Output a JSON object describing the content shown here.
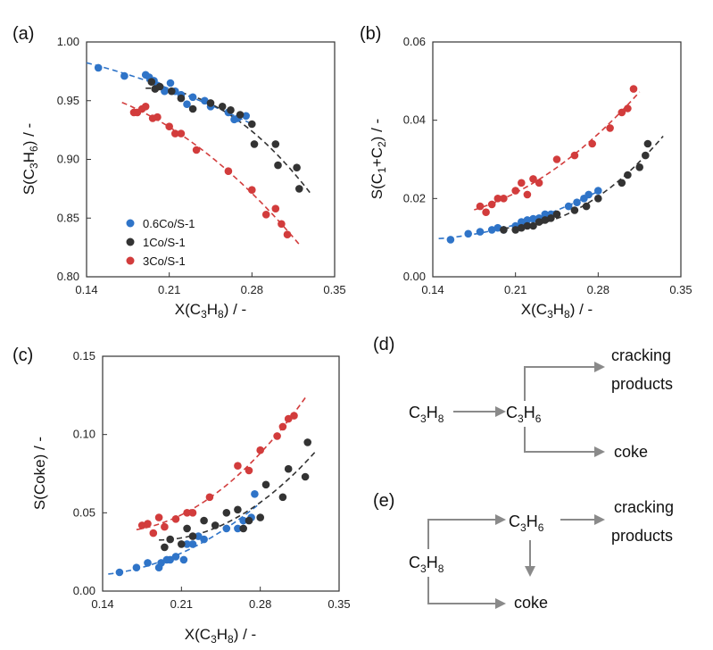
{
  "colors": {
    "blue": "#2f74c8",
    "black": "#333333",
    "red": "#d23c3c",
    "arrow": "#8a8a8a"
  },
  "chart_data": [
    {
      "panel": "(a)",
      "type": "scatter",
      "xlabel": "X(C3H8) / -",
      "ylabel": "S(C3H6) / -",
      "xlim": [
        0.14,
        0.35
      ],
      "ylim": [
        0.8,
        1.0
      ],
      "xticks": [
        "0.14",
        "0.21",
        "0.28",
        "0.35"
      ],
      "yticks": [
        "0.80",
        "0.85",
        "0.90",
        "0.95",
        "1.00"
      ],
      "legend": {
        "location": "bottom-left",
        "entries": [
          "0.6Co/S-1",
          "1Co/S-1",
          "3Co/S-1"
        ]
      },
      "series": [
        {
          "name": "0.6Co/S-1",
          "color": "blue",
          "x": [
            0.15,
            0.172,
            0.19,
            0.193,
            0.197,
            0.2,
            0.206,
            0.211,
            0.215,
            0.22,
            0.225,
            0.23,
            0.24,
            0.245,
            0.26,
            0.265,
            0.268,
            0.275
          ],
          "y": [
            0.978,
            0.971,
            0.972,
            0.97,
            0.967,
            0.963,
            0.958,
            0.965,
            0.958,
            0.955,
            0.947,
            0.953,
            0.95,
            0.945,
            0.94,
            0.934,
            0.935,
            0.937
          ],
          "fit": [
            [
              0.14,
              0.981
            ],
            [
              0.28,
              0.926
            ]
          ]
        },
        {
          "name": "1Co/S-1",
          "color": "black",
          "x": [
            0.195,
            0.198,
            0.202,
            0.212,
            0.22,
            0.23,
            0.245,
            0.255,
            0.262,
            0.27,
            0.28,
            0.282,
            0.3,
            0.302,
            0.318,
            0.32
          ],
          "y": [
            0.966,
            0.96,
            0.962,
            0.958,
            0.952,
            0.943,
            0.948,
            0.945,
            0.942,
            0.938,
            0.93,
            0.913,
            0.913,
            0.895,
            0.893,
            0.875
          ],
          "fit": [
            [
              0.19,
              0.972
            ],
            [
              0.33,
              0.866
            ]
          ]
        },
        {
          "name": "3Co/S-1",
          "color": "red",
          "x": [
            0.18,
            0.183,
            0.187,
            0.19,
            0.196,
            0.2,
            0.21,
            0.215,
            0.22,
            0.233,
            0.26,
            0.28,
            0.292,
            0.3,
            0.305,
            0.31
          ],
          "y": [
            0.94,
            0.94,
            0.943,
            0.945,
            0.935,
            0.936,
            0.928,
            0.922,
            0.922,
            0.908,
            0.89,
            0.874,
            0.853,
            0.858,
            0.845,
            0.836
          ],
          "fit": [
            [
              0.17,
              0.95
            ],
            [
              0.32,
              0.82
            ]
          ]
        }
      ]
    },
    {
      "panel": "(b)",
      "type": "scatter",
      "xlabel": "X(C3H8) / -",
      "ylabel": "S(C1+C2) / -",
      "xlim": [
        0.14,
        0.35
      ],
      "ylim": [
        0.0,
        0.06
      ],
      "xticks": [
        "0.14",
        "0.21",
        "0.28",
        "0.35"
      ],
      "yticks": [
        "0.00",
        "0.02",
        "0.04",
        "0.06"
      ],
      "series": [
        {
          "name": "0.6Co/S-1",
          "color": "blue",
          "x": [
            0.155,
            0.17,
            0.18,
            0.19,
            0.195,
            0.2,
            0.21,
            0.215,
            0.22,
            0.225,
            0.23,
            0.235,
            0.24,
            0.255,
            0.262,
            0.268,
            0.272,
            0.28
          ],
          "y": [
            0.0095,
            0.011,
            0.0115,
            0.012,
            0.0125,
            0.012,
            0.013,
            0.014,
            0.0145,
            0.0148,
            0.015,
            0.016,
            0.016,
            0.018,
            0.019,
            0.02,
            0.021,
            0.022
          ],
          "fit": [
            [
              0.145,
              0.009
            ],
            [
              0.28,
              0.023
            ]
          ]
        },
        {
          "name": "1Co/S-1",
          "color": "black",
          "x": [
            0.2,
            0.21,
            0.215,
            0.22,
            0.225,
            0.23,
            0.235,
            0.24,
            0.245,
            0.26,
            0.27,
            0.28,
            0.3,
            0.305,
            0.315,
            0.32,
            0.322
          ],
          "y": [
            0.012,
            0.012,
            0.0125,
            0.013,
            0.013,
            0.014,
            0.0145,
            0.015,
            0.016,
            0.017,
            0.018,
            0.02,
            0.024,
            0.026,
            0.028,
            0.031,
            0.034
          ],
          "fit": [
            [
              0.2,
              0.0115
            ],
            [
              0.335,
              0.035
            ]
          ]
        },
        {
          "name": "3Co/S-1",
          "color": "red",
          "x": [
            0.18,
            0.185,
            0.19,
            0.195,
            0.2,
            0.21,
            0.215,
            0.22,
            0.225,
            0.23,
            0.245,
            0.26,
            0.275,
            0.29,
            0.3,
            0.305,
            0.31
          ],
          "y": [
            0.018,
            0.0165,
            0.0185,
            0.02,
            0.02,
            0.022,
            0.024,
            0.021,
            0.025,
            0.024,
            0.03,
            0.031,
            0.034,
            0.038,
            0.042,
            0.043,
            0.048
          ],
          "fit": [
            [
              0.175,
              0.016
            ],
            [
              0.315,
              0.049
            ]
          ]
        }
      ]
    },
    {
      "panel": "(c)",
      "type": "scatter",
      "xlabel": "X(C3H8) / -",
      "ylabel": "S(Coke) / -",
      "xlim": [
        0.14,
        0.35
      ],
      "ylim": [
        0.0,
        0.15
      ],
      "xticks": [
        "0.14",
        "0.21",
        "0.28",
        "0.35"
      ],
      "yticks": [
        "0.00",
        "0.05",
        "0.10",
        "0.15"
      ],
      "series": [
        {
          "name": "0.6Co/S-1",
          "color": "blue",
          "x": [
            0.155,
            0.17,
            0.18,
            0.19,
            0.192,
            0.197,
            0.2,
            0.205,
            0.212,
            0.215,
            0.22,
            0.225,
            0.23,
            0.25,
            0.26,
            0.265,
            0.272,
            0.275
          ],
          "y": [
            0.012,
            0.015,
            0.018,
            0.015,
            0.018,
            0.02,
            0.02,
            0.022,
            0.02,
            0.03,
            0.03,
            0.035,
            0.033,
            0.04,
            0.04,
            0.045,
            0.047,
            0.062
          ],
          "fit": [
            [
              0.145,
              0.008
            ],
            [
              0.28,
              0.062
            ]
          ]
        },
        {
          "name": "1Co/S-1",
          "color": "black",
          "x": [
            0.195,
            0.2,
            0.21,
            0.215,
            0.22,
            0.23,
            0.24,
            0.25,
            0.26,
            0.265,
            0.27,
            0.28,
            0.285,
            0.3,
            0.305,
            0.32,
            0.322
          ],
          "y": [
            0.028,
            0.033,
            0.03,
            0.04,
            0.035,
            0.045,
            0.042,
            0.05,
            0.052,
            0.04,
            0.045,
            0.047,
            0.068,
            0.06,
            0.078,
            0.073,
            0.095
          ],
          "fit": [
            [
              0.19,
              0.026
            ],
            [
              0.33,
              0.093
            ]
          ]
        },
        {
          "name": "3Co/S-1",
          "color": "red",
          "x": [
            0.175,
            0.18,
            0.185,
            0.19,
            0.195,
            0.205,
            0.215,
            0.22,
            0.235,
            0.26,
            0.27,
            0.28,
            0.295,
            0.3,
            0.305,
            0.31
          ],
          "y": [
            0.042,
            0.043,
            0.037,
            0.047,
            0.041,
            0.046,
            0.05,
            0.05,
            0.06,
            0.08,
            0.077,
            0.09,
            0.099,
            0.105,
            0.11,
            0.112
          ],
          "fit": [
            [
              0.17,
              0.036
            ],
            [
              0.32,
              0.127
            ]
          ]
        }
      ]
    }
  ],
  "schemes": {
    "d": {
      "label": "(d)",
      "reactant": "C3H8",
      "intermediate": "C3H6",
      "top_line1": "cracking",
      "top_line2": "products",
      "bottom": "coke"
    },
    "e": {
      "label": "(e)",
      "reactant": "C3H8",
      "intermediate": "C3H6",
      "top_line1": "cracking",
      "top_line2": "products",
      "bottom": "coke"
    }
  }
}
